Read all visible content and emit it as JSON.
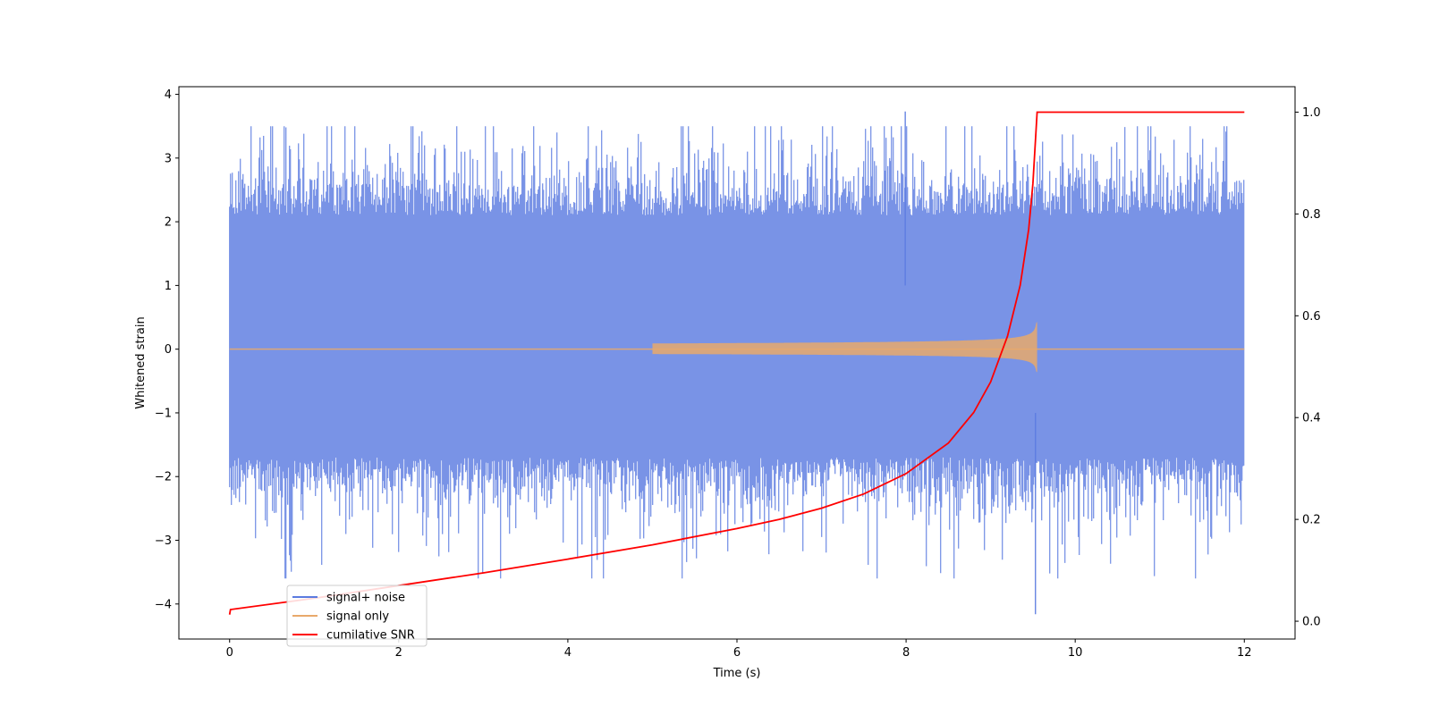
{
  "chart_data": {
    "type": "line",
    "title": "",
    "xlabel": "Time (s)",
    "ylabel": "Whitened strain",
    "y2label": "",
    "xlim": [
      -0.6,
      12.6
    ],
    "ylim": [
      -4.55,
      4.12
    ],
    "y2lim": [
      -0.035,
      1.05
    ],
    "x_ticks": [
      0,
      2,
      4,
      6,
      8,
      10,
      12
    ],
    "x_tick_labels": [
      "0",
      "2",
      "4",
      "6",
      "8",
      "10",
      "12"
    ],
    "y_ticks": [
      -4,
      -3,
      -2,
      -1,
      0,
      1,
      2,
      3,
      4
    ],
    "y_tick_labels": [
      "−4",
      "−3",
      "−2",
      "−1",
      "0",
      "1",
      "2",
      "3",
      "4"
    ],
    "y2_ticks": [
      0.0,
      0.2,
      0.4,
      0.6,
      0.8,
      1.0
    ],
    "y2_tick_labels": [
      "0.0",
      "0.2",
      "0.4",
      "0.6",
      "0.8",
      "1.0"
    ],
    "grid": false,
    "legend_position": "lower-left",
    "series": [
      {
        "name": "signal+ noise",
        "axis": "left",
        "color": "#5b7be0",
        "kind": "noise",
        "x_range": [
          0,
          12
        ],
        "typical_range": [
          -1.7,
          2.1
        ],
        "extremes": [
          -4.16,
          3.73
        ]
      },
      {
        "name": "signal only",
        "axis": "left",
        "color": "#e8a96b",
        "kind": "chirp",
        "x_range": [
          0,
          12
        ],
        "merger_time": 9.55,
        "peak_amplitude": 0.5
      },
      {
        "name": "cumilative SNR",
        "axis": "right",
        "color": "#ff0000",
        "x": [
          0,
          0.01,
          1,
          2,
          3,
          4,
          5,
          6,
          6.5,
          7,
          7.5,
          8,
          8.5,
          8.8,
          9.0,
          9.2,
          9.35,
          9.45,
          9.5,
          9.55,
          10,
          11,
          12
        ],
        "y": [
          0.013,
          0.023,
          0.045,
          0.07,
          0.095,
          0.122,
          0.15,
          0.182,
          0.2,
          0.222,
          0.25,
          0.29,
          0.35,
          0.41,
          0.47,
          0.56,
          0.66,
          0.77,
          0.86,
          1.0,
          1.0,
          1.0,
          1.0
        ]
      }
    ]
  }
}
